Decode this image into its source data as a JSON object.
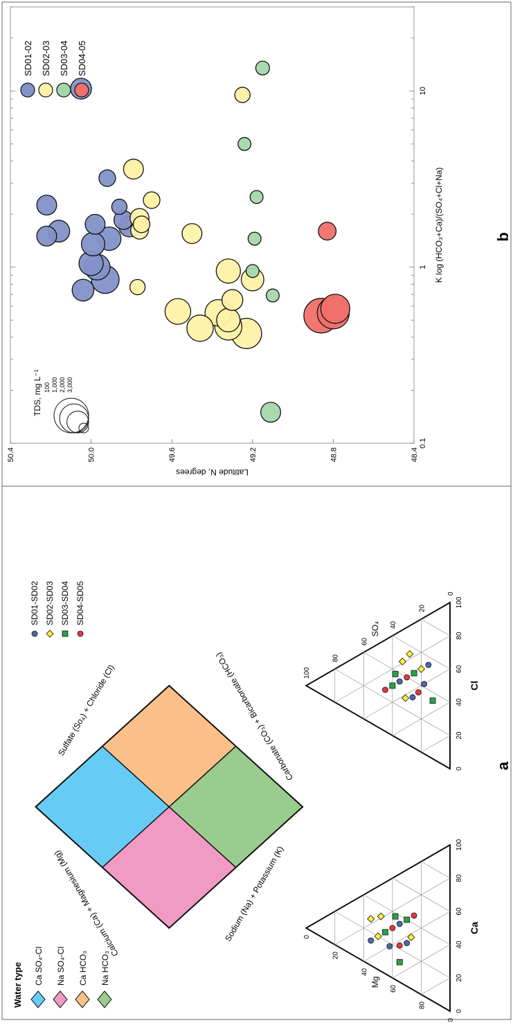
{
  "panel_labels": {
    "a": "a",
    "b": "b"
  },
  "colors": {
    "ca_so4_cl": "#66ccf5",
    "na_so4_cl": "#f09ac4",
    "ca_hco3": "#fbc08a",
    "na_hco3": "#99cc8e",
    "sd01": "#8392c8",
    "sd02": "#fff2a6",
    "sd03": "#a6d7ab",
    "sd04": "#f0706c",
    "sd01_marker": "#4f68b0",
    "sd02_marker": "#fff13c",
    "sd03_marker": "#2aa24a",
    "sd04_marker": "#e8373f"
  },
  "piper": {
    "water_type_title": "Water type",
    "water_types": [
      {
        "label": "Ca SO₄-Cl",
        "color": "#66ccf5"
      },
      {
        "label": "Na SO₄-Cl",
        "color": "#f09ac4"
      },
      {
        "label": "Ca HCO₃",
        "color": "#fbc08a"
      },
      {
        "label": "Na HCO₃",
        "color": "#99cc8e"
      }
    ],
    "legend": [
      {
        "label": "SD01-SD02",
        "marker": "circle",
        "color": "#4f68b0"
      },
      {
        "label": "SD02-SD03",
        "marker": "diamond",
        "color": "#fff13c"
      },
      {
        "label": "SD03-SD04",
        "marker": "square",
        "color": "#2aa24a"
      },
      {
        "label": "SD04-SD05",
        "marker": "circle",
        "color": "#e8373f"
      }
    ],
    "axis_labels": {
      "ca_mg": "Calcium (Ca) + Magnesium (Mg)",
      "so4_cl": "Sulfate (So₄) + Chloride (Cl)",
      "na_k": "Sodium (Na) + Potassium (K)",
      "co3_hco3": "Carbonate (CO₃) + Bicarbonate (HCO₃)",
      "cation_left": "Mg",
      "cation_bottom": "Ca",
      "anion_right": "SO₄",
      "anion_bottom": "Cl"
    },
    "ticks": [
      "0",
      "20",
      "40",
      "60",
      "80",
      "100"
    ],
    "diamond_ticks": [
      "20",
      "40",
      "60",
      "80"
    ]
  },
  "chart_data": {
    "type": "scatter",
    "title": "",
    "xlabel": "K log (HCO₃+Ca)/(SO₄+Cl+Na)",
    "ylabel": "Latitude N, degrees",
    "xscale": "log",
    "xlim": [
      0.1,
      30
    ],
    "ylim": [
      48.4,
      50.4
    ],
    "xticks": [
      "0.1",
      "1",
      "10"
    ],
    "yticks": [
      "48.4",
      "48.8",
      "49.2",
      "49.6",
      "50.0",
      "50.4"
    ],
    "size_legend_title": "TDS, mg L⁻¹",
    "size_legend_values": [
      "3,000",
      "2,000",
      "1,000",
      "100"
    ],
    "size_legend_numbers": [
      3000,
      2000,
      1000,
      100
    ],
    "legend_position": "top-right",
    "series": [
      {
        "name": "SD01-02",
        "color": "#8392c8",
        "points": [
          {
            "x": 10.3,
            "y": 50.05,
            "tds": 900
          },
          {
            "x": 2.25,
            "y": 50.22,
            "tds": 800
          },
          {
            "x": 1.5,
            "y": 50.22,
            "tds": 800
          },
          {
            "x": 1.6,
            "y": 50.16,
            "tds": 1000
          },
          {
            "x": 1.75,
            "y": 49.98,
            "tds": 800
          },
          {
            "x": 3.2,
            "y": 49.92,
            "tds": 500
          },
          {
            "x": 2.2,
            "y": 49.86,
            "tds": 400
          },
          {
            "x": 1.85,
            "y": 49.84,
            "tds": 700
          },
          {
            "x": 1.7,
            "y": 49.81,
            "tds": 900
          },
          {
            "x": 1.45,
            "y": 49.91,
            "tds": 1200
          },
          {
            "x": 1.35,
            "y": 49.99,
            "tds": 1200
          },
          {
            "x": 1.05,
            "y": 50.0,
            "tds": 1300
          },
          {
            "x": 1.0,
            "y": 49.97,
            "tds": 1500
          },
          {
            "x": 0.85,
            "y": 49.93,
            "tds": 1800
          },
          {
            "x": 0.74,
            "y": 50.04,
            "tds": 1000
          }
        ]
      },
      {
        "name": "SD02-03",
        "color": "#fff2a6",
        "points": [
          {
            "x": 9.5,
            "y": 49.25,
            "tds": 400
          },
          {
            "x": 3.6,
            "y": 49.79,
            "tds": 800
          },
          {
            "x": 2.4,
            "y": 49.7,
            "tds": 500
          },
          {
            "x": 1.9,
            "y": 49.76,
            "tds": 700
          },
          {
            "x": 1.75,
            "y": 49.75,
            "tds": 500
          },
          {
            "x": 1.62,
            "y": 49.76,
            "tds": 600
          },
          {
            "x": 1.55,
            "y": 49.5,
            "tds": 800
          },
          {
            "x": 0.95,
            "y": 49.32,
            "tds": 1300
          },
          {
            "x": 0.85,
            "y": 49.2,
            "tds": 1100
          },
          {
            "x": 0.77,
            "y": 49.77,
            "tds": 400
          },
          {
            "x": 0.65,
            "y": 49.3,
            "tds": 900
          },
          {
            "x": 0.56,
            "y": 49.57,
            "tds": 1500
          },
          {
            "x": 0.55,
            "y": 49.37,
            "tds": 1600
          },
          {
            "x": 0.5,
            "y": 49.32,
            "tds": 1200
          },
          {
            "x": 0.46,
            "y": 49.32,
            "tds": 1700
          },
          {
            "x": 0.45,
            "y": 49.46,
            "tds": 1600
          },
          {
            "x": 0.42,
            "y": 49.23,
            "tds": 2200
          }
        ]
      },
      {
        "name": "SD03-04",
        "color": "#a6d7ab",
        "points": [
          {
            "x": 13.5,
            "y": 49.15,
            "tds": 300
          },
          {
            "x": 5.0,
            "y": 49.24,
            "tds": 250
          },
          {
            "x": 2.5,
            "y": 49.18,
            "tds": 250
          },
          {
            "x": 1.45,
            "y": 49.19,
            "tds": 250
          },
          {
            "x": 0.95,
            "y": 49.2,
            "tds": 250
          },
          {
            "x": 0.69,
            "y": 49.1,
            "tds": 250
          },
          {
            "x": 0.15,
            "y": 49.11,
            "tds": 800
          }
        ]
      },
      {
        "name": "SD04-05",
        "color": "#f0706c",
        "points": [
          {
            "x": 1.6,
            "y": 48.83,
            "tds": 600
          },
          {
            "x": 0.58,
            "y": 48.79,
            "tds": 2000
          },
          {
            "x": 0.55,
            "y": 48.8,
            "tds": 2500
          },
          {
            "x": 0.53,
            "y": 48.86,
            "tds": 3000
          }
        ]
      }
    ]
  }
}
